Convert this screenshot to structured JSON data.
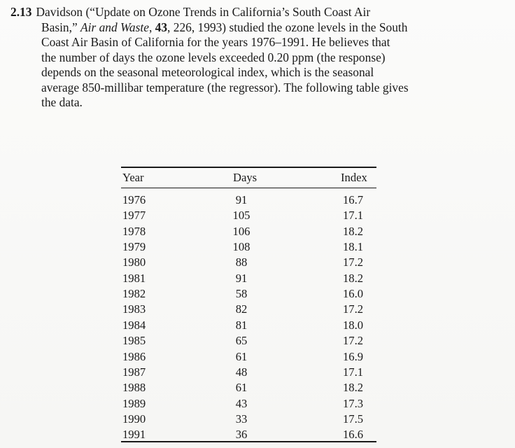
{
  "problem": {
    "number": "2.13",
    "text_line1": "Davidson (“Update on Ozone Trends in California’s South Coast Air",
    "text_line2_a": "Basin,” ",
    "journal": "Air and Waste",
    "text_line2_b": ", ",
    "volume": "43",
    "text_line2_c": ", 226, 1993) studied the ozone levels in the South",
    "text_line3": "Coast Air Basin of California for the years 1976–1991. He believes that",
    "text_line4": "the number of days the ozone levels exceeded 0.20 ppm (the response)",
    "text_line5": "depends on the seasonal meteorological index, which is the seasonal",
    "text_line6": "average 850-millibar temperature (the regressor). The following table gives",
    "text_line7": "the data."
  },
  "table": {
    "headers": {
      "year": "Year",
      "days": "Days",
      "index": "Index"
    },
    "rows": [
      {
        "year": "1976",
        "days": "91",
        "index": "16.7"
      },
      {
        "year": "1977",
        "days": "105",
        "index": "17.1"
      },
      {
        "year": "1978",
        "days": "106",
        "index": "18.2"
      },
      {
        "year": "1979",
        "days": "108",
        "index": "18.1"
      },
      {
        "year": "1980",
        "days": "88",
        "index": "17.2"
      },
      {
        "year": "1981",
        "days": "91",
        "index": "18.2"
      },
      {
        "year": "1982",
        "days": "58",
        "index": "16.0"
      },
      {
        "year": "1983",
        "days": "82",
        "index": "17.2"
      },
      {
        "year": "1984",
        "days": "81",
        "index": "18.0"
      },
      {
        "year": "1985",
        "days": "65",
        "index": "17.2"
      },
      {
        "year": "1986",
        "days": "61",
        "index": "16.9"
      },
      {
        "year": "1987",
        "days": "48",
        "index": "17.1"
      },
      {
        "year": "1988",
        "days": "61",
        "index": "18.2"
      },
      {
        "year": "1989",
        "days": "43",
        "index": "17.3"
      },
      {
        "year": "1990",
        "days": "33",
        "index": "17.5"
      },
      {
        "year": "1991",
        "days": "36",
        "index": "16.6"
      }
    ]
  }
}
